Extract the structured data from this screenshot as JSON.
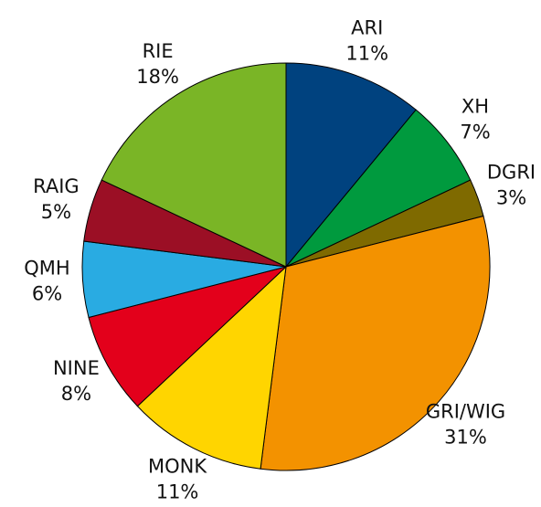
{
  "chart_data": {
    "type": "pie",
    "categories": [
      "ARI",
      "XH",
      "DGRI",
      "GRI/WIG",
      "MONK",
      "NINE",
      "QMH",
      "RAIG",
      "RIE"
    ],
    "values": [
      11,
      7,
      3,
      31,
      11,
      8,
      6,
      5,
      18
    ],
    "value_labels": [
      "11%",
      "7%",
      "3%",
      "31%",
      "11%",
      "8%",
      "6%",
      "5%",
      "18%"
    ],
    "colors": [
      "#00427f",
      "#009a3e",
      "#7f6a00",
      "#f39200",
      "#ffd500",
      "#e3001b",
      "#29abe2",
      "#9b0f25",
      "#7ab526"
    ]
  }
}
